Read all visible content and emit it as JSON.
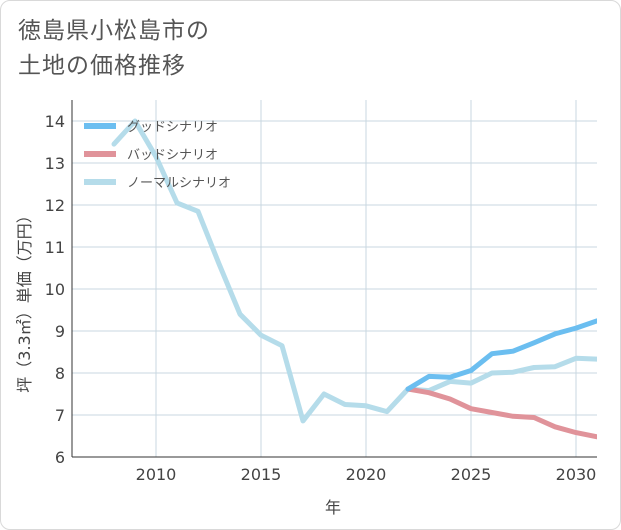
{
  "title_lines": [
    "徳島県小松島市の",
    "土地の価格推移"
  ],
  "chart_data": {
    "type": "line",
    "xlabel": "年",
    "ylabel": "坪（3.3㎡）単価（万円）",
    "xlim": [
      2006,
      2031
    ],
    "ylim": [
      6,
      14.5
    ],
    "x_ticks": [
      2010,
      2015,
      2020,
      2025,
      2030
    ],
    "y_ticks": [
      6,
      7,
      8,
      9,
      10,
      11,
      12,
      13,
      14
    ],
    "grid": true,
    "legend_position": "top-left",
    "series": [
      {
        "name": "グッドシナリオ",
        "color": "#6bbef0",
        "x": [
          2022,
          2023,
          2024,
          2025,
          2026,
          2027,
          2028,
          2029,
          2030,
          2031
        ],
        "y": [
          7.62,
          7.92,
          7.9,
          8.06,
          8.46,
          8.52,
          8.72,
          8.93,
          9.07,
          9.24
        ]
      },
      {
        "name": "バッドシナリオ",
        "color": "#e0939a",
        "x": [
          2022,
          2023,
          2024,
          2025,
          2026,
          2027,
          2028,
          2029,
          2030,
          2031
        ],
        "y": [
          7.62,
          7.53,
          7.38,
          7.15,
          7.06,
          6.97,
          6.94,
          6.72,
          6.58,
          6.48
        ]
      },
      {
        "name": "ノーマルシナリオ",
        "color": "#b5dcea",
        "x": [
          2008,
          2009,
          2010,
          2011,
          2012,
          2013,
          2014,
          2015,
          2016,
          2017,
          2018,
          2019,
          2020,
          2021,
          2022,
          2023,
          2024,
          2025,
          2026,
          2027,
          2028,
          2029,
          2030,
          2031
        ],
        "y": [
          13.45,
          14.0,
          13.15,
          12.05,
          11.85,
          10.6,
          9.4,
          8.9,
          8.65,
          6.86,
          7.5,
          7.25,
          7.22,
          7.08,
          7.62,
          7.58,
          7.8,
          7.76,
          8.0,
          8.02,
          8.13,
          8.15,
          8.35,
          8.33
        ]
      }
    ]
  }
}
